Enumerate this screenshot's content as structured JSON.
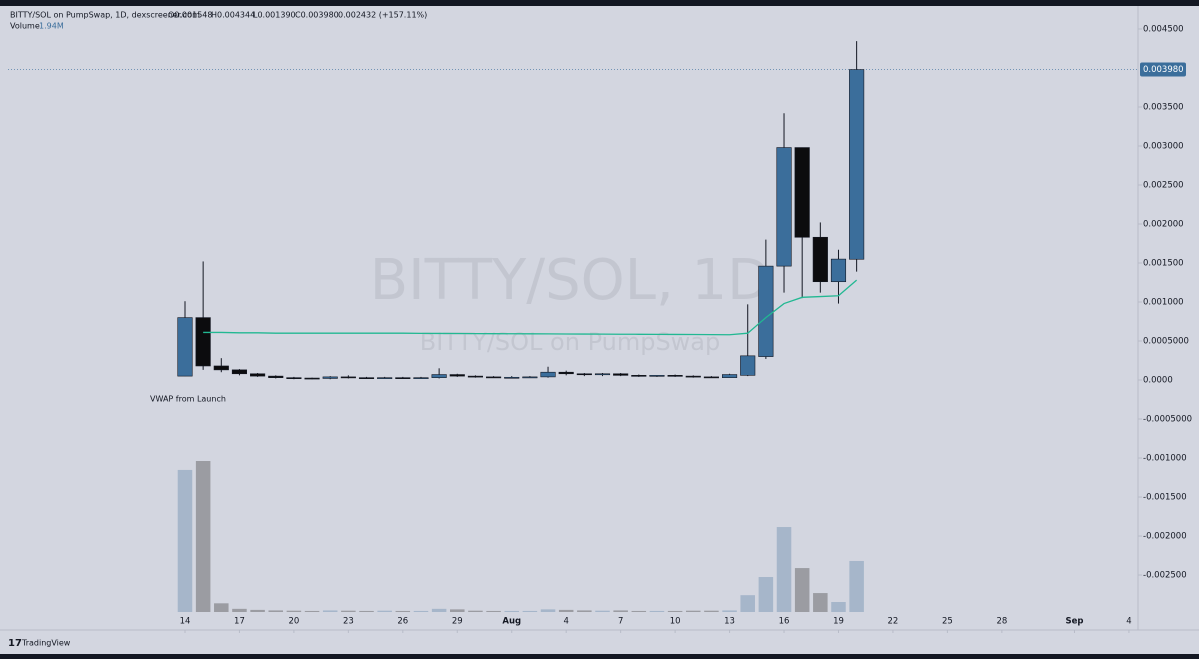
{
  "chart_data": {
    "type": "candlestick",
    "title": "BITTY/SOL on PumpSwap, 1D, dexscreener.com",
    "ohlc_legend": [
      "O0.001548",
      "H0.004344",
      "L0.001390",
      "C0.003980",
      "0.002432 (+157.11%)"
    ],
    "watermark": [
      "BITTY/SOL, 1D",
      "BITTY/SOL on PumpSwap"
    ],
    "brand": "TradingView",
    "up_color": "#3b6e9b",
    "down_color": "#0c0c0e",
    "volume_up_color": "#a6b6ca",
    "volume_down_color": "#9b9ca2",
    "open": [
      5e-05,
      0.0008,
      0.00018,
      0.00013,
      8e-05,
      5e-05,
      3e-05,
      2.5e-05,
      2e-05,
      4e-05,
      3e-05,
      2.5e-05,
      3e-05,
      2.5e-05,
      3e-05,
      7e-05,
      5e-05,
      4e-05,
      3e-05,
      3.5e-05,
      4e-05,
      0.0001,
      8e-05,
      7e-05,
      8e-05,
      6e-05,
      5e-05,
      6e-05,
      5e-05,
      4e-05,
      3e-05,
      6e-05,
      0.0003,
      0.00146,
      0.00298,
      0.00183,
      0.00126,
      0.001548
    ],
    "high": [
      0.00101,
      0.00152,
      0.00028,
      0.00014,
      9e-05,
      6e-05,
      4e-05,
      3e-05,
      5e-05,
      6e-05,
      4e-05,
      4e-05,
      4e-05,
      4e-05,
      0.00015,
      8e-05,
      6e-05,
      5e-05,
      5e-05,
      5e-05,
      0.00017,
      0.00012,
      9e-05,
      9e-05,
      9e-05,
      7e-05,
      6e-05,
      7e-05,
      6e-05,
      5e-05,
      8e-05,
      0.00097,
      0.0018,
      0.00342,
      0.00298,
      0.00202,
      0.00167,
      0.004344
    ],
    "low": [
      5e-05,
      0.00013,
      0.0001,
      6e-05,
      4e-05,
      2e-05,
      1e-05,
      1e-05,
      1e-05,
      2e-05,
      2e-05,
      2e-05,
      2e-05,
      2e-05,
      2e-05,
      4e-05,
      3e-05,
      3e-05,
      2e-05,
      3e-05,
      3e-05,
      6e-05,
      5e-05,
      5e-05,
      5e-05,
      4e-05,
      4e-05,
      4e-05,
      3e-05,
      3e-05,
      3e-05,
      5e-05,
      0.00027,
      0.00112,
      0.00105,
      0.00112,
      0.00098,
      0.00139
    ],
    "close": [
      0.0008,
      0.00018,
      0.00013,
      8e-05,
      5e-05,
      3e-05,
      2e-05,
      2e-05,
      4e-05,
      3e-05,
      2.5e-05,
      3e-05,
      2.5e-05,
      3e-05,
      7e-05,
      5e-05,
      4e-05,
      3e-05,
      3.5e-05,
      4e-05,
      0.0001,
      8e-05,
      7e-05,
      8e-05,
      6e-05,
      5e-05,
      6e-05,
      5e-05,
      4e-05,
      3e-05,
      7e-05,
      0.00031,
      0.00146,
      0.00298,
      0.00183,
      0.00126,
      0.00155,
      0.00398
    ],
    "volume": [
      5400000,
      5740000,
      330000,
      120000,
      80000,
      60000,
      50000,
      40000,
      60000,
      50000,
      40000,
      50000,
      40000,
      40000,
      120000,
      100000,
      50000,
      40000,
      40000,
      40000,
      100000,
      80000,
      60000,
      50000,
      60000,
      40000,
      40000,
      40000,
      50000,
      50000,
      60000,
      640000,
      1330000,
      3230000,
      1670000,
      720000,
      380000,
      1940000
    ],
    "volume_legend": {
      "name": "Volume",
      "label": "1.94M"
    },
    "vwap": {
      "name": "VWAP from Launch",
      "color": "#22b892",
      "values": [
        null,
        0.00061,
        0.00061,
        0.000605,
        0.000605,
        0.0006,
        0.0006,
        0.0006,
        0.0006,
        0.0006,
        0.0006,
        0.0006,
        0.0006,
        0.000598,
        0.000597,
        0.000596,
        0.000595,
        0.000594,
        0.000593,
        0.000592,
        0.000591,
        0.00059,
        0.000589,
        0.000588,
        0.000587,
        0.000586,
        0.000585,
        0.000584,
        0.000583,
        0.000582,
        0.00058,
        0.0006,
        0.0008,
        0.00098,
        0.00106,
        0.00107,
        0.00108,
        0.00128
      ]
    },
    "last_price": {
      "value": 0.00398,
      "label": "0.003980"
    },
    "ylim": [
      -0.002974,
      0.004769
    ],
    "yticks": [
      {
        "value": 0.0045,
        "label": "0.004500"
      },
      {
        "value": 0.0035,
        "label": "0.003500"
      },
      {
        "value": 0.003,
        "label": "0.003000"
      },
      {
        "value": 0.0025,
        "label": "0.002500"
      },
      {
        "value": 0.002,
        "label": "0.002000"
      },
      {
        "value": 0.0015,
        "label": "0.001500"
      },
      {
        "value": 0.001,
        "label": "0.001000"
      },
      {
        "value": 0.0005,
        "label": "0.0005000"
      },
      {
        "value": 0,
        "label": "0.0000"
      },
      {
        "value": -0.0005,
        "label": "-0.0005000"
      },
      {
        "value": -0.001,
        "label": "-0.001000"
      },
      {
        "value": -0.0015,
        "label": "-0.001500"
      },
      {
        "value": -0.002,
        "label": "-0.002000"
      },
      {
        "value": -0.0025,
        "label": "-0.002500"
      }
    ],
    "xlim": [
      -9.75,
      52.5
    ],
    "xticks": [
      {
        "value": 0,
        "label": "14"
      },
      {
        "value": 3,
        "label": "17"
      },
      {
        "value": 6,
        "label": "20"
      },
      {
        "value": 9,
        "label": "23"
      },
      {
        "value": 12,
        "label": "26"
      },
      {
        "value": 15,
        "label": "29"
      },
      {
        "value": 18,
        "label": "Aug"
      },
      {
        "value": 21,
        "label": "4"
      },
      {
        "value": 24,
        "label": "7"
      },
      {
        "value": 27,
        "label": "10"
      },
      {
        "value": 30,
        "label": "13"
      },
      {
        "value": 33,
        "label": "16"
      },
      {
        "value": 36,
        "label": "19"
      },
      {
        "value": 39,
        "label": "22"
      },
      {
        "value": 42,
        "label": "25"
      },
      {
        "value": 45,
        "label": "28"
      },
      {
        "value": 49,
        "label": "Sep"
      },
      {
        "value": 52,
        "label": "4"
      }
    ]
  }
}
